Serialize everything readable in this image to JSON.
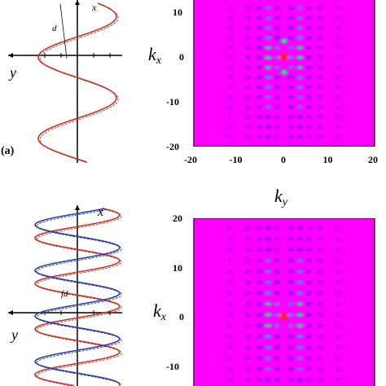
{
  "panels": [
    {
      "label": "(a)",
      "real_space": {
        "x_axis_label": "x",
        "y_axis_label": "y",
        "distance_label": "d",
        "helices": [
          {
            "color": "#c0392b"
          }
        ]
      },
      "fourier": {
        "xlabel": "k",
        "xlabel_sub": "y",
        "ylabel": "k",
        "ylabel_sub": "x",
        "x_ticks": [
          "-20",
          "-10",
          "0",
          "10",
          "20"
        ],
        "y_ticks": [
          "10",
          "0",
          "-10",
          "-20"
        ]
      }
    },
    {
      "label": "",
      "real_space": {
        "x_axis_label": "x",
        "y_axis_label": "y",
        "distance_label": "fd",
        "helices": [
          {
            "color": "#c0392b"
          },
          {
            "color": "#2c3e9e"
          }
        ]
      },
      "fourier": {
        "ylabel": "k",
        "ylabel_sub": "x",
        "y_ticks": [
          "20",
          "10",
          "0",
          "-10"
        ]
      }
    }
  ],
  "chart_data": [
    {
      "type": "heatmap",
      "title": "",
      "xlabel": "k_y",
      "ylabel": "k_x",
      "xlim": [
        -20,
        20
      ],
      "ylim": [
        -20,
        13
      ],
      "colormap": [
        "#ff00ff",
        "#1b1bff",
        "#00c8ff",
        "#00ff80",
        "#ff2020"
      ],
      "background_color": "#ff00ff",
      "peaks": [
        {
          "kx": 0,
          "ky": 0,
          "level": "max",
          "color": "#ff2020"
        },
        {
          "kx": 3.5,
          "ky": 0,
          "level": "high",
          "color": "#00ff80"
        },
        {
          "kx": -3.5,
          "ky": 0,
          "level": "high",
          "color": "#00ff80"
        }
      ]
    },
    {
      "type": "heatmap",
      "title": "",
      "xlabel": "",
      "ylabel": "k_x",
      "ylim": [
        -15,
        20
      ],
      "colormap": [
        "#ff00ff",
        "#1b1bff",
        "#00c8ff",
        "#00ff80",
        "#ff2020"
      ],
      "background_color": "#ff00ff",
      "peaks": [
        {
          "kx": 0,
          "ky": 0,
          "level": "max",
          "color": "#ff2020"
        }
      ]
    }
  ]
}
